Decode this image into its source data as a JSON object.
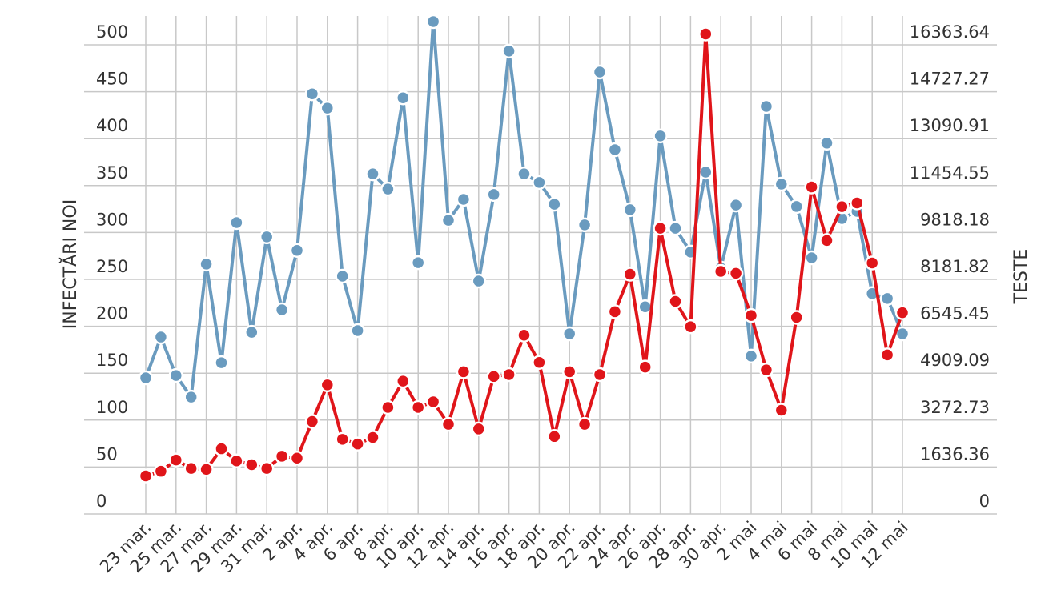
{
  "chart_data": {
    "type": "line",
    "title": "",
    "ylabel": "INFECTĂRI NOI",
    "y2label": "TESTE",
    "ylim": [
      0,
      500
    ],
    "y2lim": [
      0,
      16363.64
    ],
    "grid": true,
    "yticks": [
      "0",
      "50",
      "100",
      "150",
      "200",
      "250",
      "300",
      "350",
      "400",
      "450",
      "500"
    ],
    "y2ticks": [
      "0",
      "1636.36",
      "3272.73",
      "4909.09",
      "6545.45",
      "8181.82",
      "9818.18",
      "11454.55",
      "13090.91",
      "14727.27",
      "16363.64"
    ],
    "xtick_labels": [
      "23 mar.",
      "25 mar.",
      "27 mar.",
      "29 mar.",
      "31 mar.",
      "2 apr.",
      "4 apr.",
      "6 apr.",
      "8 apr.",
      "10 apr.",
      "12 apr.",
      "14 apr.",
      "16 apr.",
      "18 apr.",
      "20 apr.",
      "22 apr.",
      "24 apr.",
      "26 apr.",
      "28 apr.",
      "30 apr.",
      "2 mai",
      "4 mai",
      "6 mai",
      "8 mai",
      "10 mai",
      "12 mai"
    ],
    "series": [
      {
        "axis": "right",
        "color": "#6a9bbf",
        "values": [
          4271,
          5695,
          4353,
          3600,
          8240,
          4800,
          9690,
          5860,
          9190,
          6645,
          8720,
          14180,
          13680,
          7820,
          5920,
          11390,
          10860,
          14040,
          8290,
          16700,
          9770,
          10500,
          7650,
          10670,
          15670,
          11390,
          11090,
          10330,
          5810,
          9610,
          14940,
          12230,
          10140,
          6750,
          12710,
          9490,
          8660,
          11450,
          8100,
          10300,
          5030,
          13740,
          11030,
          10250,
          8460,
          12460,
          9830,
          10080,
          7210,
          7040,
          5810
        ]
      },
      {
        "axis": "left",
        "color": "#e0151a",
        "values": [
          26,
          31,
          43,
          34,
          33,
          55,
          42,
          38,
          34,
          47,
          45,
          84,
          123,
          65,
          60,
          67,
          99,
          127,
          99,
          105,
          81,
          137,
          76,
          132,
          134,
          176,
          147,
          68,
          137,
          81,
          134,
          201,
          241,
          142,
          290,
          212,
          185,
          497,
          244,
          242,
          197,
          139,
          96,
          195,
          334,
          277,
          313,
          317,
          253,
          155,
          200
        ]
      }
    ]
  }
}
